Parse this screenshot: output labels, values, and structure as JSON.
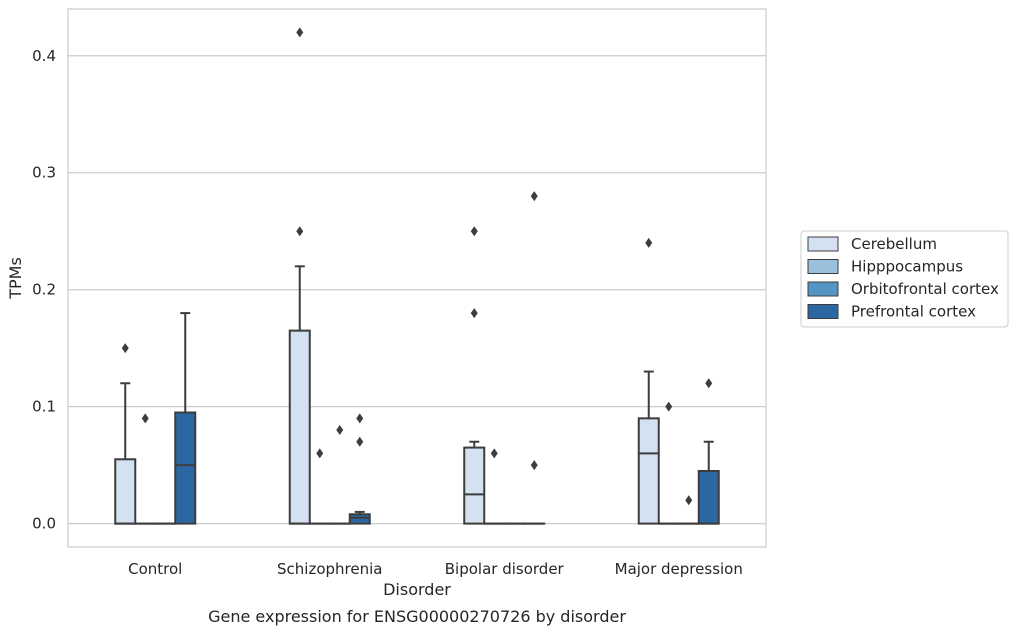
{
  "chart_data": {
    "type": "box",
    "caption": "Gene expression for ENSG00000270726 by disorder",
    "xlabel": "Disorder",
    "ylabel": "TPMs",
    "ylim": [
      -0.02,
      0.44
    ],
    "yticks": [
      0.0,
      0.1,
      0.2,
      0.3,
      0.4
    ],
    "ytick_labels": [
      "0.0",
      "0.1",
      "0.2",
      "0.3",
      "0.4"
    ],
    "grid": "horizontal",
    "legend_position": "right",
    "categories": [
      "Control",
      "Schizophrenia",
      "Bipolar disorder",
      "Major depression"
    ],
    "series": [
      {
        "name": "Cerebellum",
        "color": "#d3e1f0",
        "boxes": [
          {
            "q1": 0.0,
            "median": 0.0,
            "q3": 0.055,
            "whisker_low": 0.0,
            "whisker_high": 0.12,
            "outliers": [
              0.15
            ]
          },
          {
            "q1": 0.0,
            "median": 0.0,
            "q3": 0.165,
            "whisker_low": 0.0,
            "whisker_high": 0.22,
            "outliers": [
              0.42,
              0.25
            ]
          },
          {
            "q1": 0.0,
            "median": 0.025,
            "q3": 0.065,
            "whisker_low": 0.0,
            "whisker_high": 0.07,
            "outliers": [
              0.25,
              0.18
            ]
          },
          {
            "q1": 0.0,
            "median": 0.06,
            "q3": 0.09,
            "whisker_low": 0.0,
            "whisker_high": 0.13,
            "outliers": [
              0.24
            ]
          }
        ]
      },
      {
        "name": "Hipppocampus",
        "color": "#9ac0dc",
        "boxes": [
          {
            "q1": 0.0,
            "median": 0.0,
            "q3": 0.0,
            "whisker_low": 0.0,
            "whisker_high": 0.0,
            "outliers": [
              0.09
            ]
          },
          {
            "q1": 0.0,
            "median": 0.0,
            "q3": 0.0,
            "whisker_low": 0.0,
            "whisker_high": 0.0,
            "outliers": [
              0.06
            ]
          },
          {
            "q1": 0.0,
            "median": 0.0,
            "q3": 0.0,
            "whisker_low": 0.0,
            "whisker_high": 0.0,
            "outliers": [
              0.06
            ]
          },
          {
            "q1": 0.0,
            "median": 0.0,
            "q3": 0.0,
            "whisker_low": 0.0,
            "whisker_high": 0.0,
            "outliers": [
              0.1
            ]
          }
        ]
      },
      {
        "name": "Orbitofrontal cortex",
        "color": "#5595c5",
        "boxes": [
          {
            "q1": 0.0,
            "median": 0.0,
            "q3": 0.0,
            "whisker_low": 0.0,
            "whisker_high": 0.0,
            "outliers": []
          },
          {
            "q1": 0.0,
            "median": 0.0,
            "q3": 0.0,
            "whisker_low": 0.0,
            "whisker_high": 0.0,
            "outliers": [
              0.08
            ]
          },
          {
            "q1": 0.0,
            "median": 0.0,
            "q3": 0.0,
            "whisker_low": 0.0,
            "whisker_high": 0.0,
            "outliers": []
          },
          {
            "q1": 0.0,
            "median": 0.0,
            "q3": 0.0,
            "whisker_low": 0.0,
            "whisker_high": 0.0,
            "outliers": [
              0.02
            ]
          }
        ]
      },
      {
        "name": "Prefrontal cortex",
        "color": "#2a67a3",
        "boxes": [
          {
            "q1": 0.0,
            "median": 0.05,
            "q3": 0.095,
            "whisker_low": 0.0,
            "whisker_high": 0.18,
            "outliers": []
          },
          {
            "q1": 0.0,
            "median": 0.005,
            "q3": 0.008,
            "whisker_low": 0.0,
            "whisker_high": 0.01,
            "outliers": [
              0.09,
              0.07
            ]
          },
          {
            "q1": 0.0,
            "median": 0.0,
            "q3": 0.0,
            "whisker_low": 0.0,
            "whisker_high": 0.0,
            "outliers": [
              0.28,
              0.05
            ]
          },
          {
            "q1": 0.0,
            "median": 0.0,
            "q3": 0.045,
            "whisker_low": 0.0,
            "whisker_high": 0.07,
            "outliers": [
              0.12
            ]
          }
        ]
      }
    ]
  }
}
